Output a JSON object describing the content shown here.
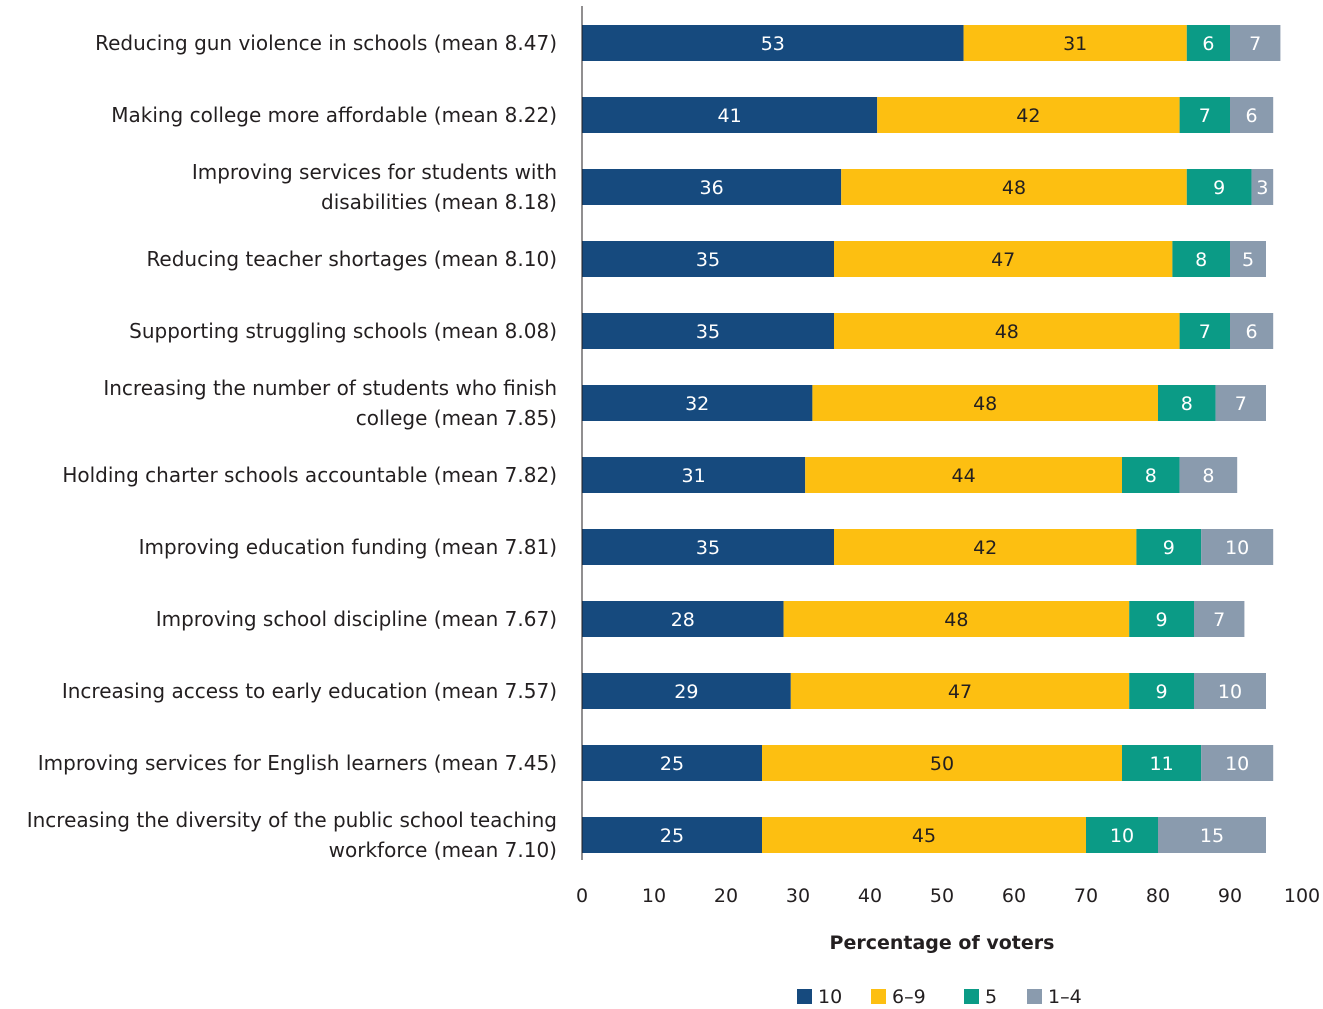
{
  "chart_data": {
    "type": "bar",
    "orientation": "horizontal",
    "stacked": true,
    "title": "",
    "xlabel": "Percentage of voters",
    "ylabel": "",
    "xlim": [
      0,
      100
    ],
    "xticks": [
      0,
      10,
      20,
      30,
      40,
      50,
      60,
      70,
      80,
      90,
      100
    ],
    "grid": false,
    "legend_position": "bottom",
    "categories": [
      [
        "Reducing gun violence in schools (mean 8.47)"
      ],
      [
        "Making college more affordable (mean 8.22)"
      ],
      [
        "Improving services for students with",
        "disabilities (mean 8.18)"
      ],
      [
        "Reducing teacher shortages (mean 8.10)"
      ],
      [
        "Supporting struggling schools (mean 8.08)"
      ],
      [
        "Increasing the number of students who finish",
        "college (mean 7.85)"
      ],
      [
        "Holding charter schools accountable (mean 7.82)"
      ],
      [
        "Improving education funding (mean 7.81)"
      ],
      [
        "Improving school discipline (mean 7.67)"
      ],
      [
        "Increasing access to early education (mean 7.57)"
      ],
      [
        "Improving services for English learners (mean 7.45)"
      ],
      [
        "Increasing the diversity of the public school teaching",
        "workforce (mean 7.10)"
      ]
    ],
    "series": [
      {
        "name": "10",
        "color": "#164a7e",
        "label_color": "#ffffff",
        "values": [
          53,
          41,
          36,
          35,
          35,
          32,
          31,
          35,
          28,
          29,
          25,
          25
        ]
      },
      {
        "name": "6–9",
        "color": "#fdbf11",
        "label_color": "#231f20",
        "values": [
          31,
          42,
          48,
          47,
          48,
          48,
          44,
          42,
          48,
          47,
          50,
          45
        ]
      },
      {
        "name": "5",
        "color": "#0b9b86",
        "label_color": "#ffffff",
        "values": [
          6,
          7,
          9,
          8,
          7,
          8,
          8,
          9,
          9,
          9,
          11,
          10
        ]
      },
      {
        "name": "1–4",
        "color": "#8a9bae",
        "label_color": "#ffffff",
        "values": [
          7,
          6,
          3,
          5,
          6,
          7,
          8,
          10,
          7,
          10,
          10,
          15
        ]
      }
    ]
  }
}
